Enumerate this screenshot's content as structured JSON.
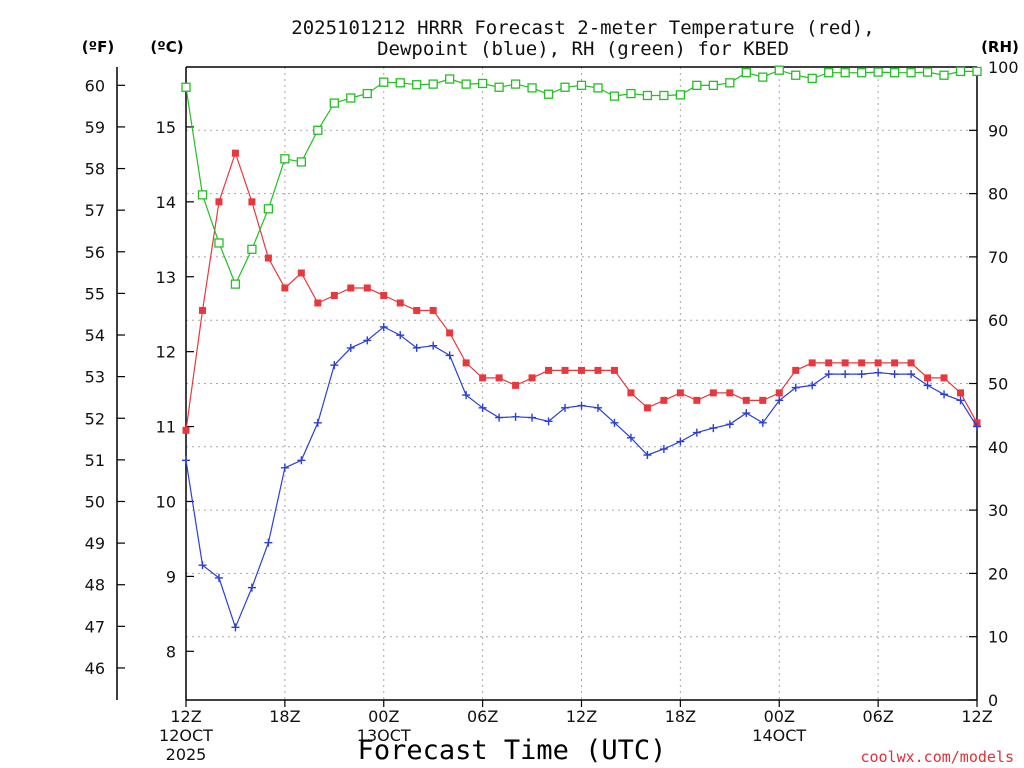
{
  "header": {
    "title_line1": "2025101212 HRRR Forecast 2-meter Temperature (red),",
    "title_line2": "Dewpoint (blue), RH (green) for KBED"
  },
  "units": {
    "fahrenheit": "(ºF)",
    "celsius": "(ºC)",
    "rh": "(RH)"
  },
  "footer": {
    "xlabel": "Forecast Time (UTC)",
    "credit": "coolwx.com/models",
    "credit_color": "#e0303a"
  },
  "chart_data": {
    "type": "line",
    "x_unit": "hours after 2025-10-12 12Z",
    "x": [
      0,
      1,
      2,
      3,
      4,
      5,
      6,
      7,
      8,
      9,
      10,
      11,
      12,
      13,
      14,
      15,
      16,
      17,
      18,
      19,
      20,
      21,
      22,
      23,
      24,
      25,
      26,
      27,
      28,
      29,
      30,
      31,
      32,
      33,
      34,
      35,
      36,
      37,
      38,
      39,
      40,
      41,
      42,
      43,
      44,
      45,
      46,
      47,
      48
    ],
    "xlim": [
      0,
      48
    ],
    "x_ticks": [
      {
        "x": 0,
        "label": "12Z",
        "date": "12OCT",
        "year": "2025"
      },
      {
        "x": 6,
        "label": "18Z"
      },
      {
        "x": 12,
        "label": "00Z",
        "date": "13OCT"
      },
      {
        "x": 18,
        "label": "06Z"
      },
      {
        "x": 24,
        "label": "12Z"
      },
      {
        "x": 30,
        "label": "18Z"
      },
      {
        "x": 36,
        "label": "00Z",
        "date": "14OCT"
      },
      {
        "x": 42,
        "label": "06Z"
      },
      {
        "x": 48,
        "label": "12Z"
      }
    ],
    "y_left_c": {
      "label": "(ºC)",
      "lim": [
        7.35,
        15.8
      ],
      "ticks": [
        8,
        9,
        10,
        11,
        12,
        13,
        14,
        15
      ]
    },
    "y_left_f": {
      "label": "(ºF)",
      "ticks": [
        46,
        47,
        48,
        49,
        50,
        51,
        52,
        53,
        54,
        55,
        56,
        57,
        58,
        59,
        60
      ]
    },
    "y_right": {
      "label": "(RH)",
      "lim": [
        0,
        100
      ],
      "ticks": [
        0,
        10,
        20,
        30,
        40,
        50,
        60,
        70,
        80,
        90,
        100
      ]
    },
    "grid": true,
    "series": [
      {
        "name": "Temperature",
        "color": "#e8383d",
        "marker": "filled-square",
        "axis": "celsius",
        "values": [
          10.95,
          12.55,
          14.0,
          14.65,
          14.0,
          13.25,
          12.85,
          13.05,
          12.65,
          12.75,
          12.85,
          12.85,
          12.75,
          12.65,
          12.55,
          12.55,
          12.25,
          11.85,
          11.65,
          11.65,
          11.55,
          11.65,
          11.75,
          11.75,
          11.75,
          11.75,
          11.75,
          11.45,
          11.25,
          11.35,
          11.45,
          11.35,
          11.45,
          11.45,
          11.35,
          11.35,
          11.45,
          11.75,
          11.85,
          11.85,
          11.85,
          11.85,
          11.85,
          11.85,
          11.85,
          11.65,
          11.65,
          11.45,
          11.05
        ]
      },
      {
        "name": "Dewpoint",
        "color": "#2a3fd8",
        "marker": "plus",
        "axis": "celsius",
        "values": [
          10.55,
          9.15,
          8.98,
          8.32,
          8.85,
          9.45,
          10.45,
          10.55,
          11.05,
          11.82,
          12.05,
          12.15,
          12.33,
          12.22,
          12.05,
          12.08,
          11.95,
          11.42,
          11.25,
          11.12,
          11.13,
          11.12,
          11.07,
          11.25,
          11.28,
          11.25,
          11.05,
          10.85,
          10.62,
          10.7,
          10.8,
          10.92,
          10.98,
          11.03,
          11.18,
          11.05,
          11.35,
          11.52,
          11.55,
          11.7,
          11.7,
          11.7,
          11.72,
          11.7,
          11.7,
          11.55,
          11.43,
          11.35,
          11.0
        ]
      },
      {
        "name": "RH",
        "color": "#22c022",
        "marker": "open-square",
        "axis": "rh",
        "values": [
          96.8,
          79.8,
          72.2,
          65.7,
          71.2,
          77.6,
          85.5,
          85.0,
          90.0,
          94.3,
          95.1,
          95.8,
          97.6,
          97.5,
          97.2,
          97.3,
          98.1,
          97.3,
          97.4,
          96.8,
          97.3,
          96.7,
          95.7,
          96.8,
          97.1,
          96.7,
          95.4,
          95.8,
          95.5,
          95.5,
          95.6,
          97.1,
          97.1,
          97.5,
          99.1,
          98.4,
          99.5,
          98.7,
          98.2,
          99.1,
          99.1,
          99.1,
          99.2,
          99.1,
          99.1,
          99.2,
          98.7,
          99.3,
          99.3
        ]
      }
    ]
  }
}
